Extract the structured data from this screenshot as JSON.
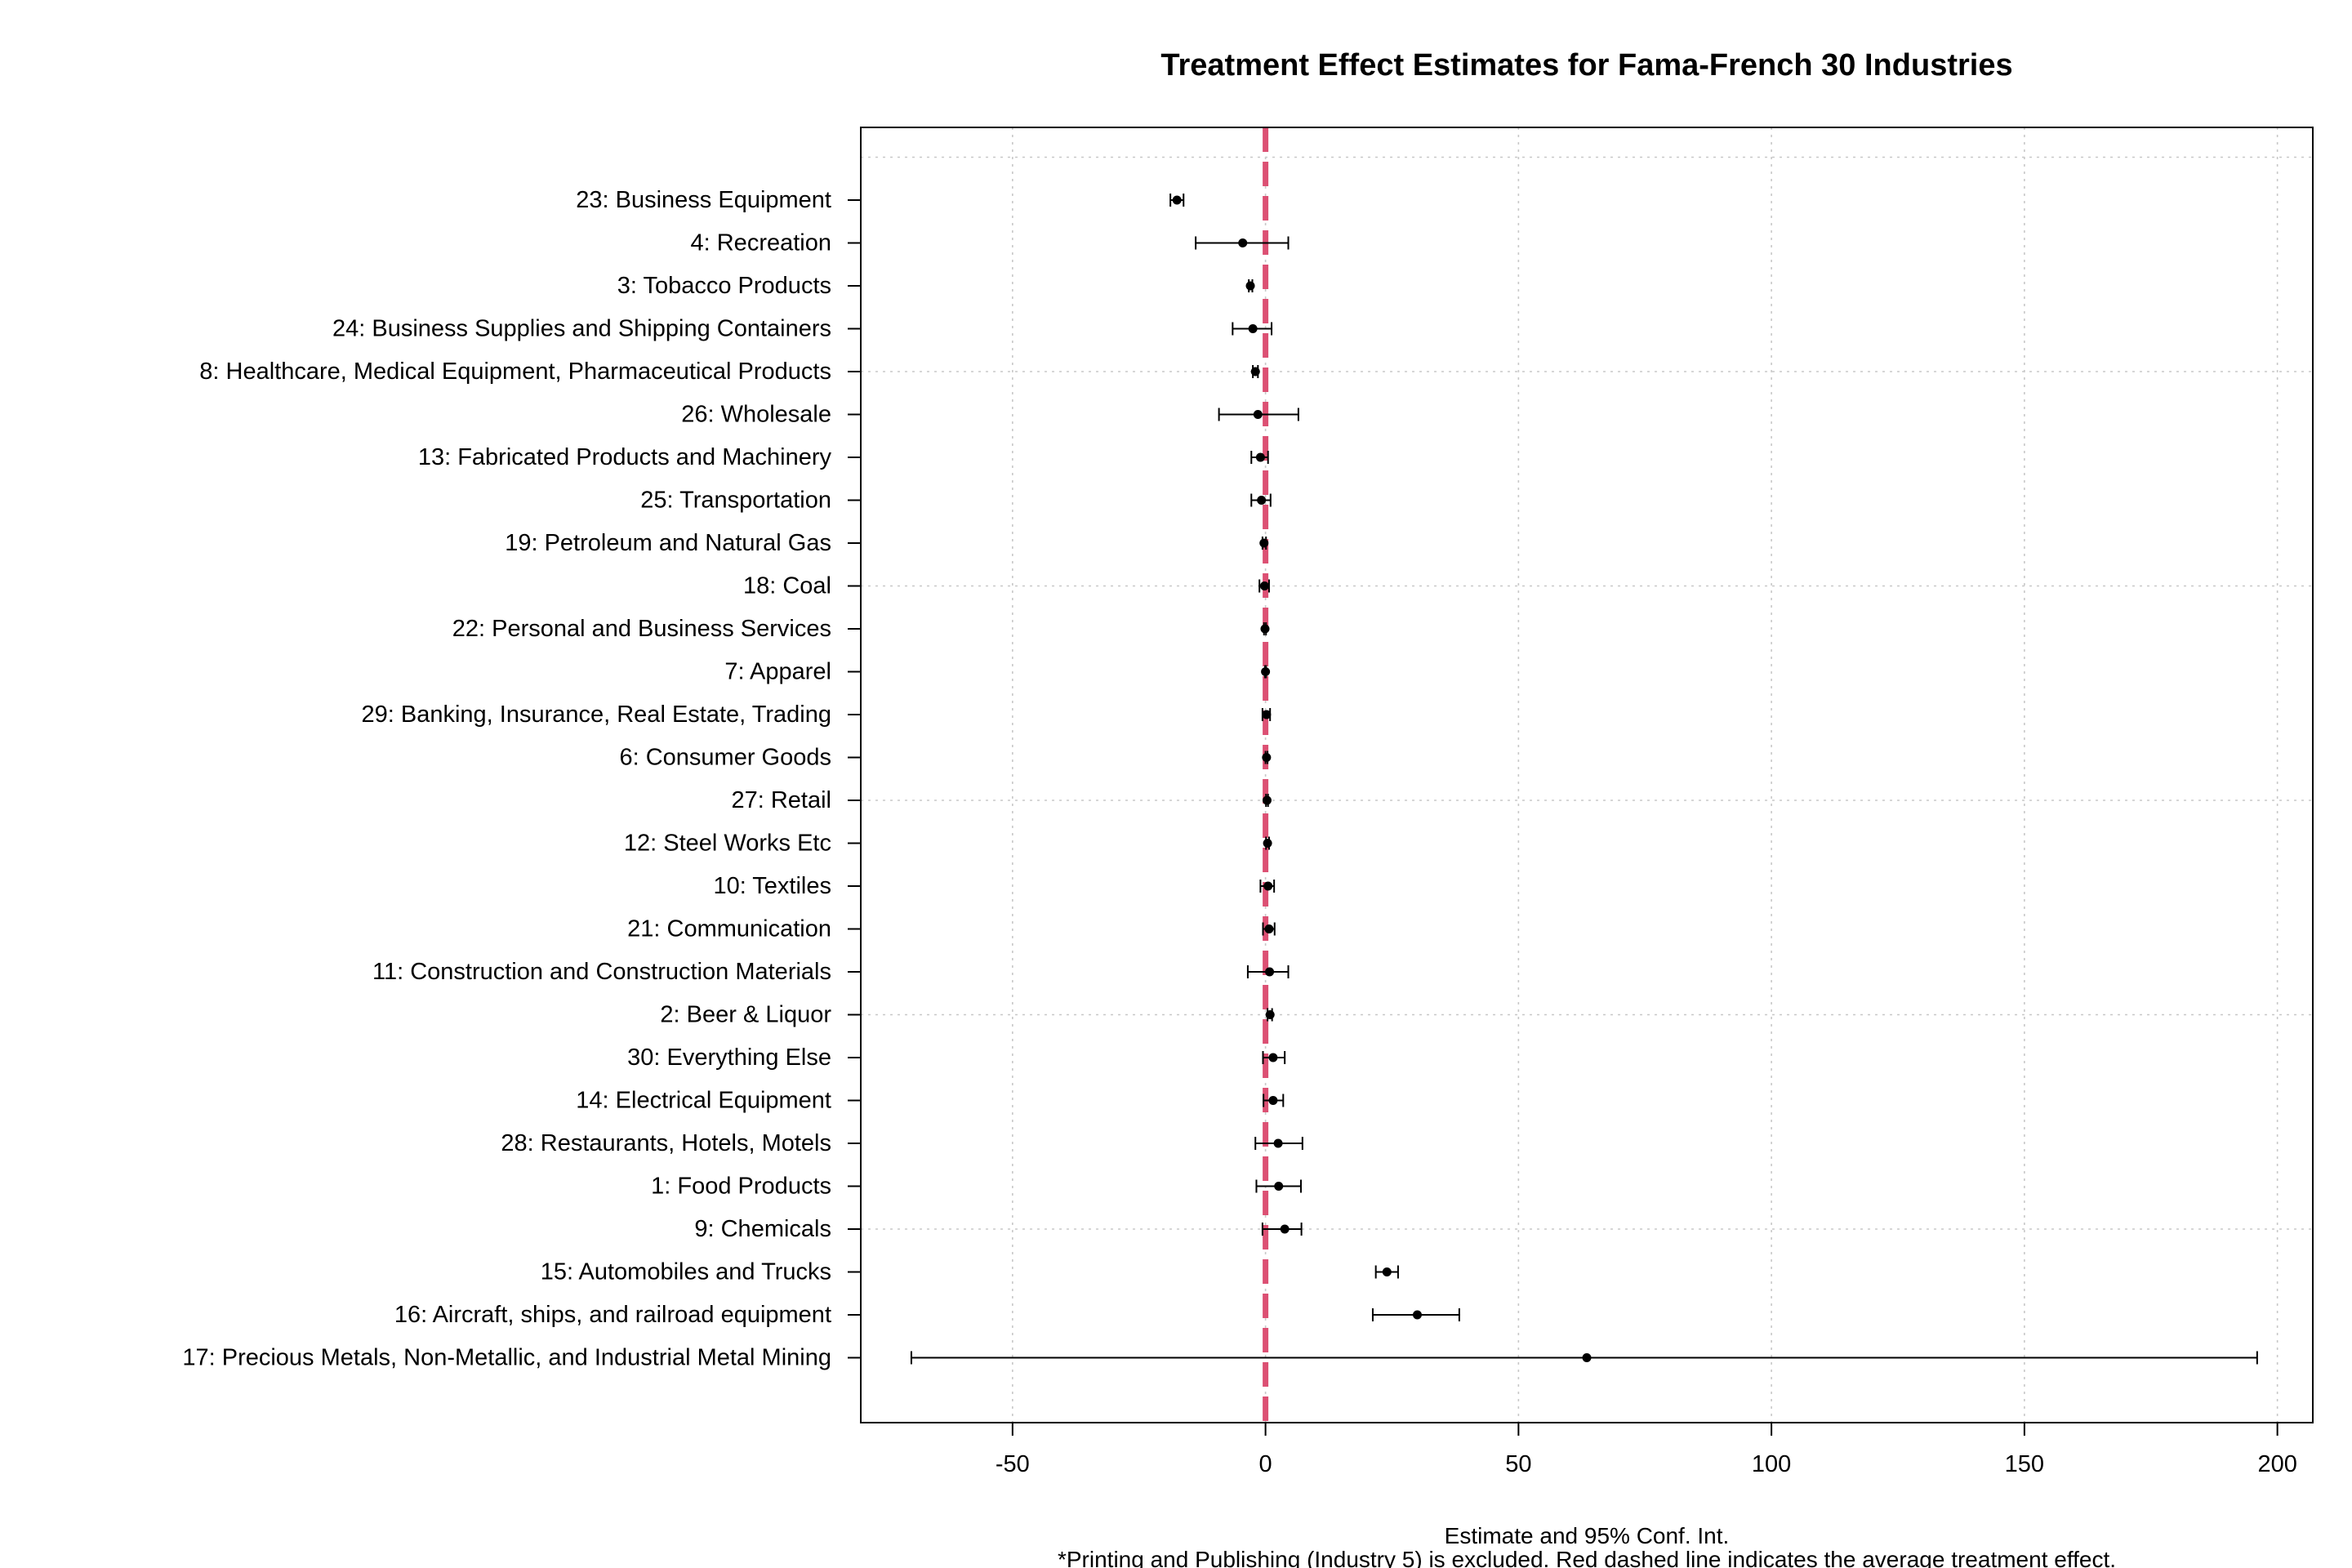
{
  "chart_data": {
    "type": "forest",
    "title": "Treatment Effect Estimates for Fama-French 30 Industries",
    "xlabel": "Estimate and 95% Conf. Int.",
    "note": "*Printing and Publishing (Industry 5) is excluded. Red dashed line indicates the average treatment effect.",
    "xlim": [
      -80,
      207
    ],
    "xticks": [
      -50,
      0,
      50,
      100,
      150,
      200
    ],
    "xtick_labels": [
      "-50",
      "0",
      "50",
      "100",
      "150",
      "200"
    ],
    "grid": true,
    "reference_line": {
      "value": 0,
      "style": "dashed",
      "color": "#dc5073"
    },
    "categories": [
      "23: Business Equipment",
      "4: Recreation",
      "3: Tobacco Products",
      "24: Business Supplies and Shipping Containers",
      "8: Healthcare, Medical Equipment, Pharmaceutical Products",
      "26: Wholesale",
      "13: Fabricated Products and Machinery",
      "25: Transportation",
      "19: Petroleum and Natural Gas",
      "18: Coal",
      "22: Personal and Business Services",
      "7: Apparel",
      "29: Banking, Insurance, Real Estate, Trading",
      "6: Consumer Goods",
      "27: Retail",
      "12: Steel Works Etc",
      "10: Textiles",
      "21: Communication",
      "11: Construction and Construction Materials",
      "2: Beer & Liquor",
      "30: Everything Else",
      "14: Electrical Equipment",
      "28: Restaurants, Hotels, Motels",
      "1: Food Products",
      "9: Chemicals",
      "15: Automobiles and Trucks",
      "16: Aircraft, ships, and railroad equipment",
      "17: Precious Metals, Non-Metallic, and Industrial Metal Mining"
    ],
    "estimates": [
      -17.5,
      -4.5,
      -3.0,
      -2.5,
      -2.0,
      -1.5,
      -1.0,
      -0.8,
      -0.3,
      -0.2,
      -0.1,
      0.0,
      0.2,
      0.2,
      0.3,
      0.4,
      0.5,
      0.7,
      0.8,
      0.9,
      1.5,
      1.5,
      2.5,
      2.6,
      3.8,
      24.0,
      30.0,
      63.5
    ],
    "ci_lower": [
      -18.8,
      -13.8,
      -3.3,
      -6.5,
      -2.5,
      -9.2,
      -2.8,
      -2.8,
      -0.6,
      -1.2,
      -0.3,
      -0.1,
      -0.6,
      0.0,
      0.1,
      0.1,
      -1.0,
      -0.5,
      -3.5,
      0.4,
      -0.5,
      -0.4,
      -2.0,
      -1.8,
      -0.6,
      21.8,
      21.2,
      -70.0
    ],
    "ci_upper": [
      -16.2,
      4.5,
      -2.6,
      1.2,
      -1.5,
      6.5,
      0.5,
      1.0,
      0.1,
      0.7,
      0.1,
      0.1,
      0.9,
      0.4,
      0.5,
      0.7,
      1.7,
      1.8,
      4.5,
      1.3,
      3.8,
      3.5,
      7.3,
      7.0,
      7.1,
      26.2,
      38.3,
      196.0
    ]
  }
}
